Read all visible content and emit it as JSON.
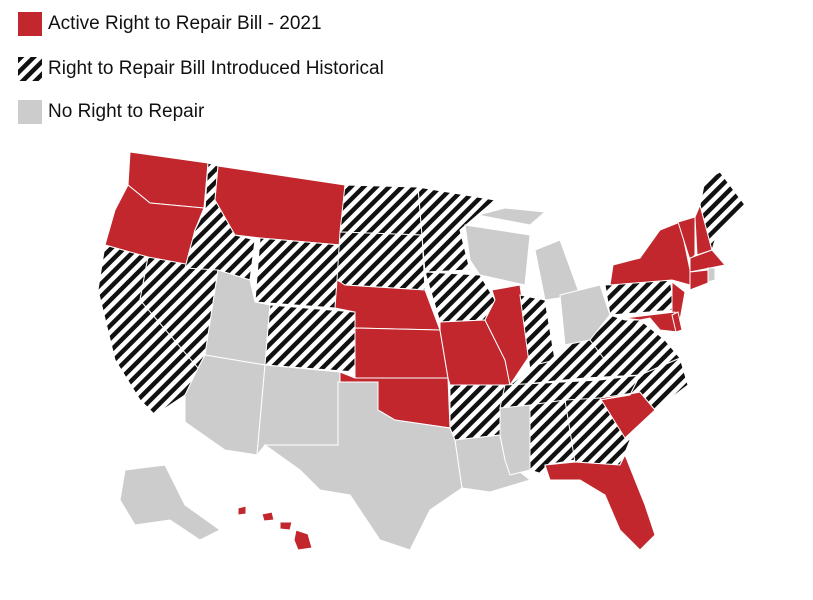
{
  "legend": [
    {
      "label": "Active Right to Repair Bill - 2021"
    },
    {
      "label": "Right to Repair Bill Introduced Historical"
    },
    {
      "label": "No Right to Repair"
    }
  ]
}
